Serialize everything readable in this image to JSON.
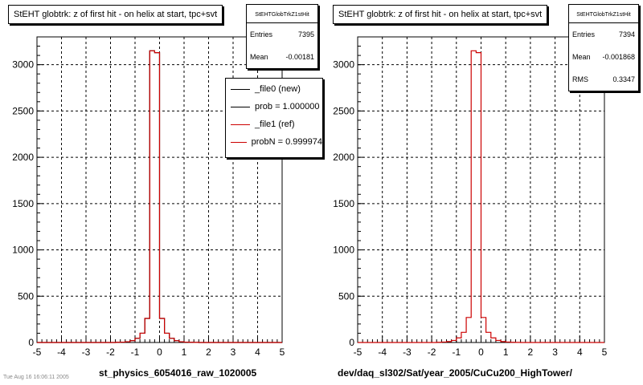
{
  "colors": {
    "new": "#000000",
    "ref": "#cc0000",
    "grid": "#000000"
  },
  "left": {
    "title": "StEHT globtrk: z of first hit - on helix at start, tpc+svt",
    "stats": {
      "name": "StEHTGlobTrkZ1stHit",
      "rows": [
        {
          "label": "Entries",
          "value": "7395"
        },
        {
          "label": "Mean",
          "value": "-0.00181"
        }
      ]
    },
    "legend": [
      {
        "label": "_file0 (new)",
        "color": "#000000"
      },
      {
        "label": "prob = 1.000000",
        "color": "#000000"
      },
      {
        "label": "_file1 (ref)",
        "color": "#cc0000"
      },
      {
        "label": "probN = 0.999974",
        "color": "#cc0000"
      }
    ],
    "xlabel": "st_physics_6054016_raw_1020005"
  },
  "right": {
    "title": "StEHT globtrk: z of first hit - on helix at start, tpc+svt",
    "stats": {
      "name": "StEHTGlobTrkZ1stHit",
      "rows": [
        {
          "label": "Entries",
          "value": "7394"
        },
        {
          "label": "Mean",
          "value": "-0.001868"
        },
        {
          "label": "RMS",
          "value": "0.3347"
        }
      ]
    },
    "xlabel": "dev/daq_sl302/Sat/year_2005/CuCu200_HighTower/"
  },
  "footer_text": "Tue Aug 16 16:06:11 2005",
  "chart_data": [
    {
      "type": "histogram",
      "title": "StEHT globtrk: z of first hit - on helix at start, tpc+svt",
      "xlabel": "st_physics_6054016_raw_1020005",
      "ylabel": "",
      "xlim": [
        -5,
        5
      ],
      "ylim": [
        0,
        3300
      ],
      "xticks": [
        -5,
        -4,
        -3,
        -2,
        -1,
        0,
        1,
        2,
        3,
        4,
        5
      ],
      "yticks": [
        0,
        500,
        1000,
        1500,
        2000,
        2500,
        3000
      ],
      "grid": true,
      "legend_position": "top-right",
      "bin_width": 0.2,
      "series": [
        {
          "name": "_file0 (new)",
          "color": "#000000",
          "values": [
            0,
            0,
            0,
            0,
            0,
            0,
            0,
            0,
            0,
            0,
            0,
            0,
            0,
            0,
            0,
            0,
            2,
            4,
            8,
            20,
            45,
            100,
            260,
            3150,
            3130,
            260,
            100,
            45,
            20,
            8,
            4,
            2,
            1,
            0,
            0,
            0,
            0,
            0,
            0,
            0,
            0,
            0,
            0,
            0,
            0,
            0,
            0,
            0,
            0,
            0
          ]
        },
        {
          "name": "_file1 (ref)",
          "color": "#cc0000",
          "values": [
            0,
            0,
            0,
            0,
            0,
            0,
            0,
            0,
            0,
            0,
            0,
            0,
            0,
            0,
            0,
            0,
            2,
            4,
            8,
            20,
            45,
            100,
            260,
            3150,
            3130,
            260,
            100,
            45,
            20,
            8,
            4,
            2,
            1,
            0,
            0,
            0,
            0,
            0,
            0,
            0,
            0,
            0,
            0,
            0,
            0,
            0,
            0,
            0,
            0,
            0
          ]
        }
      ]
    },
    {
      "type": "histogram",
      "title": "StEHT globtrk: z of first hit - on helix at start, tpc+svt",
      "xlabel": "dev/daq_sl302/Sat/year_2005/CuCu200_HighTower/",
      "ylabel": "",
      "xlim": [
        -5,
        5
      ],
      "ylim": [
        0,
        3300
      ],
      "xticks": [
        -5,
        -4,
        -3,
        -2,
        -1,
        0,
        1,
        2,
        3,
        4,
        5
      ],
      "yticks": [
        0,
        500,
        1000,
        1500,
        2000,
        2500,
        3000
      ],
      "grid": true,
      "bin_width": 0.2,
      "series": [
        {
          "name": "",
          "color": "#cc0000",
          "values": [
            0,
            0,
            0,
            0,
            0,
            0,
            0,
            0,
            0,
            0,
            0,
            0,
            0,
            0,
            0,
            0,
            2,
            5,
            10,
            22,
            50,
            110,
            270,
            3150,
            3130,
            270,
            110,
            50,
            22,
            10,
            5,
            2,
            1,
            0,
            0,
            0,
            0,
            0,
            0,
            0,
            0,
            0,
            0,
            0,
            0,
            0,
            0,
            0,
            0,
            0
          ]
        }
      ]
    }
  ]
}
